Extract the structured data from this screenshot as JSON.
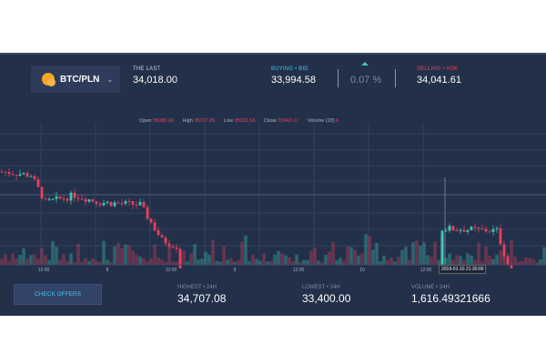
{
  "header": {
    "pair": "BTC/PLN",
    "last_label": "THE LAST",
    "last_value": "34,018.00",
    "bid_label": "BUYING • BID",
    "bid_value": "33,994.58",
    "change": "0.07 %",
    "ask_label": "SELLING • ASK",
    "ask_value": "34,041.61"
  },
  "ohlc": {
    "open_label": "Open",
    "open": "35080.00",
    "high_label": "High",
    "high": "35137.89",
    "low_label": "Low",
    "low": "35031.58",
    "close_label": "Close",
    "close": "35043.17",
    "volume_label": "Volume (20)",
    "volume": "6"
  },
  "time_axis": [
    "12:00",
    "8",
    "12:00",
    "9",
    "12:00",
    "10",
    "12:00"
  ],
  "crosshair_time": "2019-01-10 21:30:00",
  "footer": {
    "check_offers": "CHECK OFFERS",
    "highest_label": "HIGHEST • 24H",
    "highest": "34,707.08",
    "lowest_label": "LOWEST • 24H",
    "lowest": "33,400.00",
    "volume_label": "VOLUME • 24H",
    "volume": "1,616.49321666"
  },
  "colors": {
    "up": "#3ec9b5",
    "down": "#e8405e",
    "bg": "#233049",
    "bid": "#3ec8f0",
    "ask": "#e8405e"
  },
  "chart_data": {
    "type": "candlestick",
    "candles": 150,
    "anchors": [
      [
        0,
        34880
      ],
      [
        8,
        34850
      ],
      [
        12,
        34620
      ],
      [
        20,
        34680
      ],
      [
        27,
        34620
      ],
      [
        38,
        34600
      ],
      [
        44,
        34300
      ],
      [
        48,
        34250
      ],
      [
        50,
        33720
      ],
      [
        56,
        33780
      ],
      [
        62,
        33880
      ],
      [
        80,
        33920
      ],
      [
        95,
        33820
      ],
      [
        110,
        33940
      ],
      [
        120,
        33960
      ],
      [
        121,
        34400
      ],
      [
        136,
        34380
      ],
      [
        140,
        34000
      ],
      [
        146,
        33660
      ],
      [
        150,
        33700
      ]
    ]
  }
}
